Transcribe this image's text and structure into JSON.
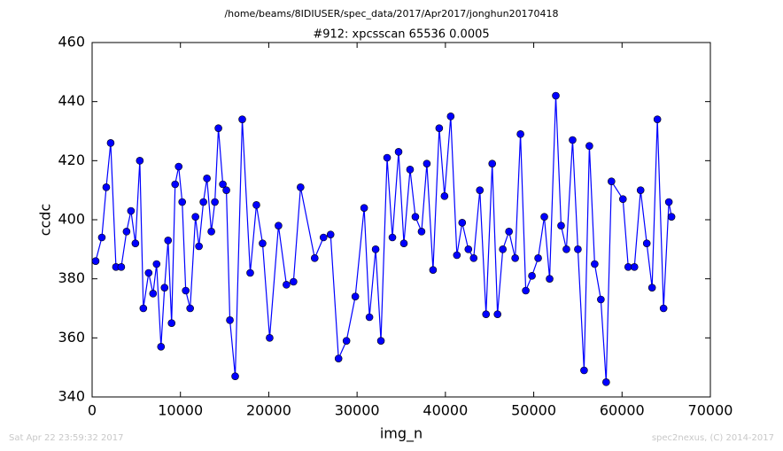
{
  "chart_data": {
    "type": "line",
    "suptitle": "/home/beams/8IDIUSER/spec_data/2017/Apr2017/jonghun20170418",
    "title": "#912: xpcsscan 65536 0.0005",
    "xlabel": "img_n",
    "ylabel": "ccdc",
    "footer_left": "Sat Apr 22 23:59:32 2017",
    "footer_right": "spec2nexus, (C) 2014-2017",
    "color": "#0000ff",
    "x": [
      400,
      1100,
      1600,
      2100,
      2700,
      3300,
      3900,
      4400,
      4900,
      5400,
      5800,
      6400,
      6900,
      7300,
      7800,
      8200,
      8600,
      9000,
      9400,
      9800,
      10200,
      10600,
      11100,
      11700,
      12100,
      12600,
      13000,
      13500,
      13900,
      14300,
      14800,
      15200,
      15600,
      16200,
      17000,
      17900,
      18600,
      19300,
      20100,
      21100,
      22000,
      22800,
      23600,
      25200,
      26200,
      27000,
      27900,
      28800,
      29800,
      30800,
      31400,
      32100,
      32700,
      33400,
      34000,
      34700,
      35300,
      36000,
      36600,
      37300,
      37900,
      38600,
      39300,
      39900,
      40600,
      41300,
      41900,
      42600,
      43200,
      43900,
      44600,
      45300,
      45900,
      46500,
      47200,
      47900,
      48500,
      49100,
      49800,
      50500,
      51200,
      51800,
      52500,
      53100,
      53700,
      54400,
      55000,
      55700,
      56300,
      56900,
      57600,
      58200,
      58800,
      60100,
      60700,
      61400,
      62100,
      62800,
      63400,
      64000,
      64700,
      65300,
      65600
    ],
    "values": [
      386,
      394,
      411,
      426,
      384,
      384,
      396,
      403,
      392,
      420,
      370,
      382,
      375,
      385,
      357,
      377,
      393,
      365,
      412,
      418,
      406,
      376,
      370,
      401,
      391,
      406,
      414,
      396,
      406,
      431,
      412,
      410,
      366,
      347,
      434,
      382,
      405,
      392,
      360,
      398,
      378,
      379,
      411,
      387,
      394,
      395,
      353,
      359,
      374,
      404,
      367,
      390,
      359,
      421,
      394,
      423,
      392,
      417,
      401,
      396,
      419,
      383,
      431,
      408,
      435,
      388,
      399,
      390,
      387,
      410,
      368,
      419,
      368,
      390,
      396,
      387,
      429,
      376,
      381,
      387,
      401,
      380,
      442,
      398,
      390,
      427,
      390,
      349,
      425,
      385,
      373,
      345,
      413,
      407,
      384,
      384,
      410,
      392,
      377,
      434,
      370,
      406,
      401
    ],
    "xlim": [
      0,
      70000
    ],
    "xticks": [
      0,
      10000,
      20000,
      30000,
      40000,
      50000,
      60000,
      70000
    ],
    "ylim": [
      340,
      460
    ],
    "yticks": [
      340,
      360,
      380,
      400,
      420,
      440,
      460
    ]
  }
}
